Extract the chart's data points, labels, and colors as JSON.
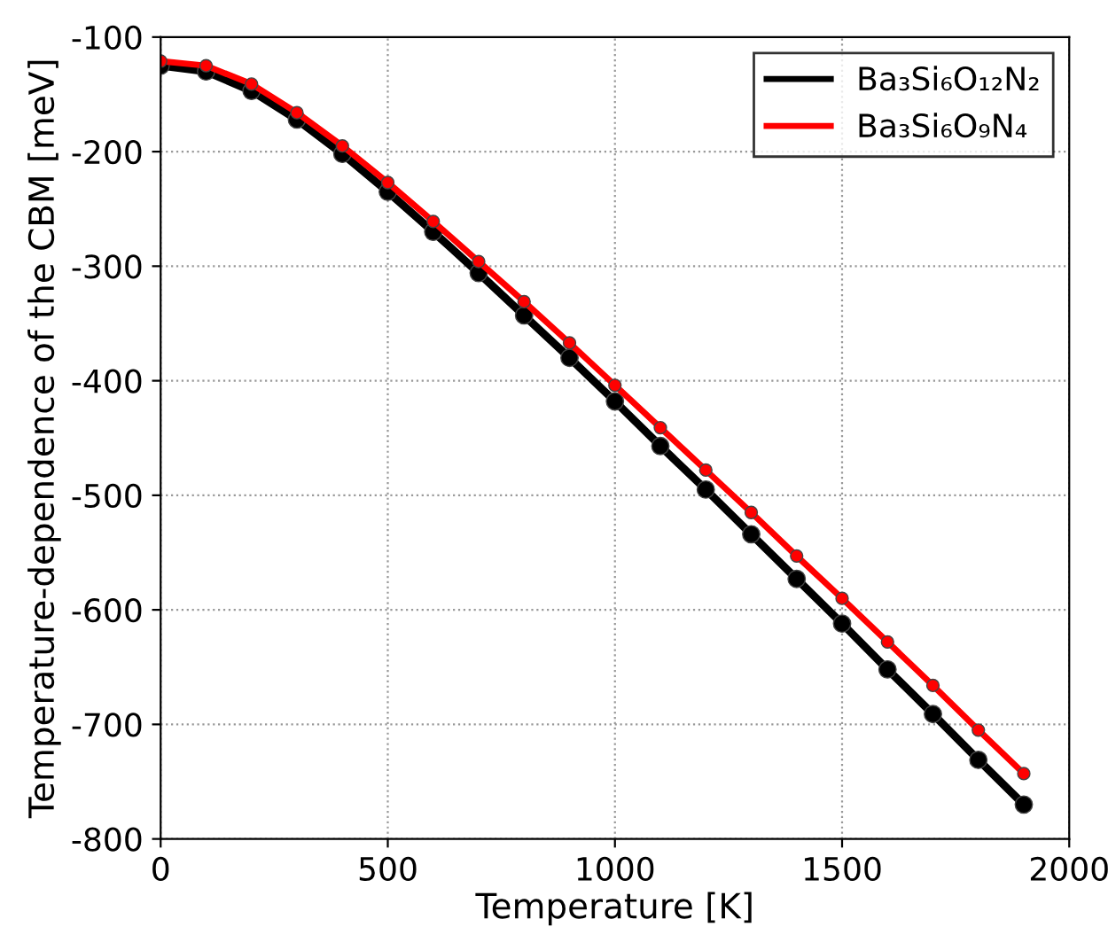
{
  "chart_data": {
    "type": "line",
    "xlabel": "Temperature [K]",
    "ylabel": "Temperature-dependence of the CBM [meV]",
    "x": [
      0,
      100,
      200,
      300,
      400,
      500,
      600,
      700,
      800,
      900,
      1000,
      1100,
      1200,
      1300,
      1400,
      1500,
      1600,
      1700,
      1800,
      1900
    ],
    "series": [
      {
        "name": "Ba₃Si₆O₁₂N₂",
        "color": "#000000",
        "values": [
          -125,
          -130,
          -147,
          -172,
          -202,
          -235,
          -270,
          -306,
          -343,
          -380,
          -418,
          -457,
          -495,
          -534,
          -573,
          -612,
          -652,
          -691,
          -731,
          -770
        ]
      },
      {
        "name": "Ba₃Si₆O₉N₄",
        "color": "#ff0000",
        "values": [
          -121,
          -125,
          -141,
          -166,
          -195,
          -227,
          -261,
          -296,
          -331,
          -367,
          -404,
          -441,
          -478,
          -515,
          -553,
          -590,
          -628,
          -666,
          -705,
          -743
        ]
      }
    ],
    "xlim": [
      0,
      2000
    ],
    "xticks": [
      0,
      500,
      1000,
      1500,
      2000
    ],
    "ylim": [
      -800,
      -100
    ],
    "yticks": [
      -800,
      -700,
      -600,
      -500,
      -400,
      -300,
      -200,
      -100
    ],
    "grid": true,
    "legend": "top right",
    "marker": "circle",
    "line_style": "solid"
  }
}
